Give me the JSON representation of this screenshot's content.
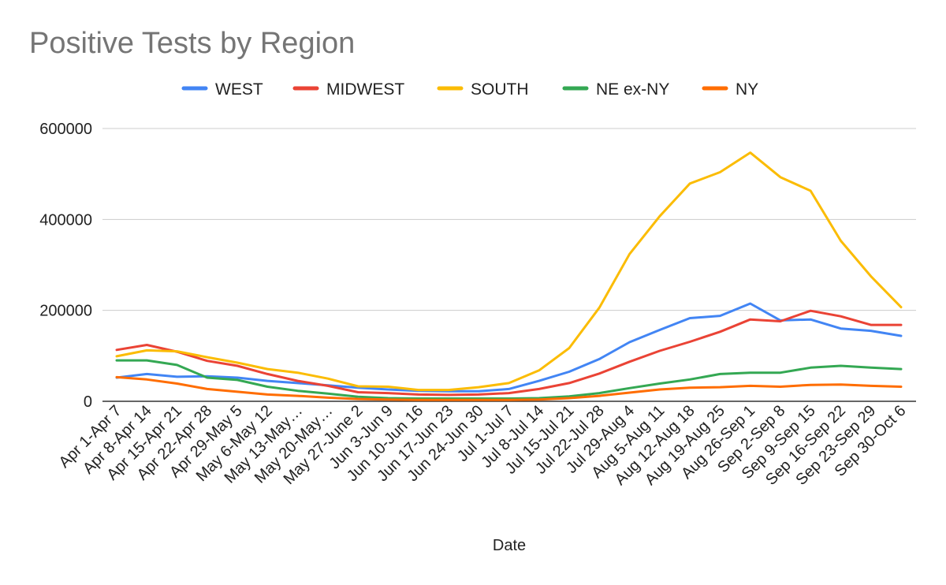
{
  "chart_data": {
    "type": "line",
    "title": "Positive Tests by Region",
    "xlabel": "Date",
    "ylabel": "",
    "ylim": [
      0,
      600000
    ],
    "yticks": [
      0,
      200000,
      400000,
      600000
    ],
    "ytick_labels": [
      "0",
      "200000",
      "400000",
      "600000"
    ],
    "grid": true,
    "legend_position": "top",
    "categories": [
      "Apr 1-Apr 7",
      "Apr 8-Apr 14",
      "Apr 15-Apr 21",
      "Apr 22-Apr 28",
      "Apr 29-May 5",
      "May 6-May 12",
      "May 13-May…",
      "May 20-May…",
      "May 27-June 2",
      "Jun 3-Jun 9",
      "Jun 10-Jun 16",
      "Jun 17-Jun 23",
      "Jun 24-Jun 30",
      "Jul 1-Jul 7",
      "Jul 8-Jul 14",
      "Jul 15-Jul 21",
      "Jul 22-Jul 28",
      "Jul 29-Aug 4",
      "Aug 5-Aug 11",
      "Aug 12-Aug 18",
      "Aug 19-Aug 25",
      "Aug 26-Sep 1",
      "Sep 2-Sep 8",
      "Sep 9-Sep 15",
      "Sep 16-Sep 22",
      "Sep 23-Sep 29",
      "Sep 30-Oct 6"
    ],
    "series": [
      {
        "name": "WEST",
        "color": "#4285F4",
        "values": [
          52000,
          60000,
          54000,
          55000,
          52000,
          45000,
          40000,
          35000,
          30000,
          26000,
          23000,
          22000,
          22000,
          27000,
          45000,
          65000,
          93000,
          130000,
          157000,
          183000,
          188000,
          215000,
          178000,
          180000,
          160000,
          155000,
          144000
        ]
      },
      {
        "name": "MIDWEST",
        "color": "#EA4335",
        "values": [
          113000,
          124000,
          109000,
          89000,
          78000,
          60000,
          45000,
          34000,
          20000,
          18000,
          15000,
          14000,
          15000,
          18000,
          27000,
          40000,
          61000,
          87000,
          111000,
          131000,
          153000,
          180000,
          176000,
          199000,
          187000,
          168000,
          168000
        ]
      },
      {
        "name": "SOUTH",
        "color": "#FBBC04",
        "values": [
          99000,
          112000,
          110000,
          97000,
          85000,
          71000,
          63000,
          50000,
          33000,
          32000,
          25000,
          25000,
          31000,
          40000,
          68000,
          117000,
          206000,
          324000,
          407000,
          479000,
          504000,
          547000,
          493000,
          463000,
          353000,
          275000,
          207000
        ]
      },
      {
        "name": "NE ex-NY",
        "color": "#34A853",
        "values": [
          90000,
          90000,
          80000,
          52000,
          47000,
          32000,
          23000,
          17000,
          10000,
          7000,
          6000,
          6000,
          6000,
          6000,
          7000,
          11000,
          18000,
          29000,
          39000,
          48000,
          60000,
          63000,
          63000,
          74000,
          78000,
          74000,
          71000
        ]
      },
      {
        "name": "NY",
        "color": "#FF6D01",
        "values": [
          53000,
          48000,
          39000,
          27000,
          21000,
          15000,
          12000,
          8000,
          5000,
          4000,
          3000,
          3000,
          3000,
          3000,
          4000,
          7000,
          12000,
          19000,
          26000,
          30000,
          31000,
          34000,
          32000,
          36000,
          37000,
          34000,
          32000
        ]
      }
    ]
  }
}
